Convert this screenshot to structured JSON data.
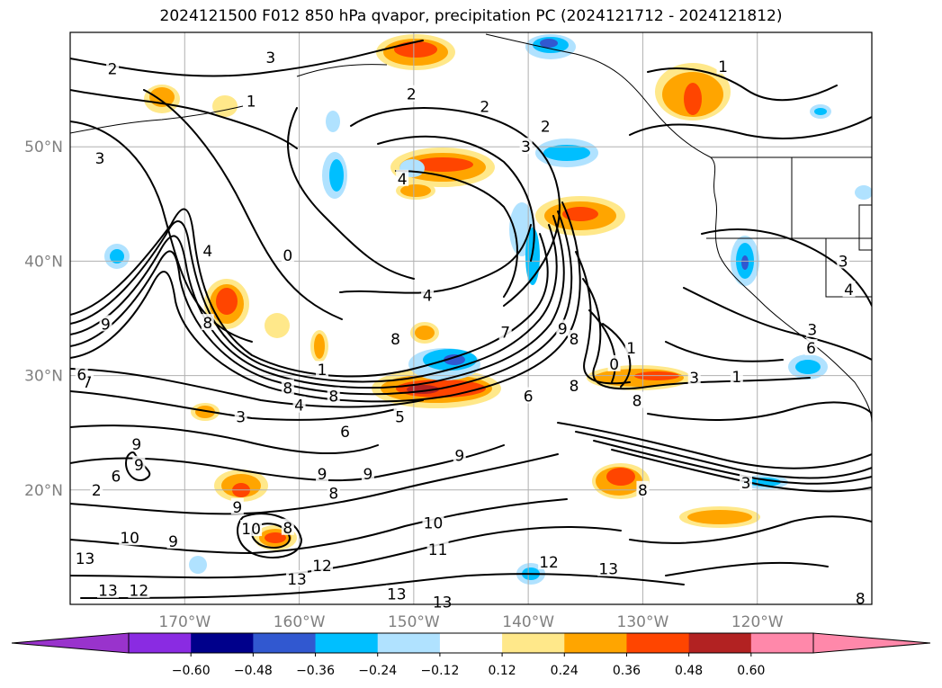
{
  "title": "2024121500 F012 850 hPa qvapor, precipitation PC (2024121712 - 2024121812)",
  "map": {
    "lon_range": [
      -180,
      -110
    ],
    "lat_range": [
      10,
      60
    ],
    "lat_ticks": [
      {
        "value": 50,
        "label": "50°N"
      },
      {
        "value": 40,
        "label": "40°N"
      },
      {
        "value": 30,
        "label": "30°N"
      },
      {
        "value": 20,
        "label": "20°N"
      }
    ],
    "lon_ticks": [
      {
        "value": -170,
        "label": "170°W"
      },
      {
        "value": -160,
        "label": "160°W"
      },
      {
        "value": -150,
        "label": "150°W"
      },
      {
        "value": -140,
        "label": "140°W"
      },
      {
        "value": -130,
        "label": "130°W"
      },
      {
        "value": -120,
        "label": "120°W"
      }
    ],
    "gridlines": true
  },
  "colorbar": {
    "orientation": "horizontal",
    "extend": "both",
    "colors": [
      "#9933cc",
      "#8a2be2",
      "#00008b",
      "#3158d0",
      "#00bfff",
      "#b0e2ff",
      "#ffffff",
      "#ffe88a",
      "#ffa500",
      "#ff4500",
      "#b22222",
      "#ff88aa",
      "#ff88aa"
    ],
    "tick_labels": [
      "−0.60",
      "−0.48",
      "−0.36",
      "−0.24",
      "−0.12",
      "0.12",
      "0.24",
      "0.36",
      "0.48",
      "0.60"
    ]
  },
  "contour_labels": [
    {
      "text": "2",
      "lon": -176.3,
      "lat": 56.8
    },
    {
      "text": "3",
      "lon": -162.5,
      "lat": 57.8
    },
    {
      "text": "1",
      "lon": -164.2,
      "lat": 54.0
    },
    {
      "text": "2",
      "lon": -150.2,
      "lat": 54.6
    },
    {
      "text": "2",
      "lon": -143.8,
      "lat": 53.5
    },
    {
      "text": "2",
      "lon": -138.5,
      "lat": 51.8
    },
    {
      "text": "3",
      "lon": -140.2,
      "lat": 50.0
    },
    {
      "text": "1",
      "lon": -123.0,
      "lat": 57.0
    },
    {
      "text": "3",
      "lon": -177.4,
      "lat": 49.0
    },
    {
      "text": "4",
      "lon": -151.0,
      "lat": 47.2
    },
    {
      "text": "4",
      "lon": -168.0,
      "lat": 40.9
    },
    {
      "text": "0",
      "lon": -161.0,
      "lat": 40.5
    },
    {
      "text": "4",
      "lon": -148.8,
      "lat": 37.0
    },
    {
      "text": "9",
      "lon": -176.9,
      "lat": 34.5
    },
    {
      "text": "8",
      "lon": -168.0,
      "lat": 34.6
    },
    {
      "text": "8",
      "lon": -151.6,
      "lat": 33.2
    },
    {
      "text": "7",
      "lon": -142.0,
      "lat": 33.8
    },
    {
      "text": "9",
      "lon": -137.0,
      "lat": 34.1
    },
    {
      "text": "8",
      "lon": -136.0,
      "lat": 33.2
    },
    {
      "text": "1",
      "lon": -131.0,
      "lat": 32.4
    },
    {
      "text": "0",
      "lon": -132.5,
      "lat": 31.0
    },
    {
      "text": "3",
      "lon": -115.2,
      "lat": 34.0
    },
    {
      "text": "6",
      "lon": -115.3,
      "lat": 32.4
    },
    {
      "text": "1",
      "lon": -158.0,
      "lat": 30.5
    },
    {
      "text": "8",
      "lon": -161.0,
      "lat": 28.9
    },
    {
      "text": "8",
      "lon": -157.0,
      "lat": 28.2
    },
    {
      "text": "4",
      "lon": -160.0,
      "lat": 27.4
    },
    {
      "text": "3",
      "lon": -165.1,
      "lat": 26.4
    },
    {
      "text": "5",
      "lon": -151.2,
      "lat": 26.4
    },
    {
      "text": "6",
      "lon": -156.0,
      "lat": 25.1
    },
    {
      "text": "6",
      "lon": -140.0,
      "lat": 28.2
    },
    {
      "text": "8",
      "lon": -136.0,
      "lat": 29.1
    },
    {
      "text": "8",
      "lon": -130.5,
      "lat": 27.8
    },
    {
      "text": "3",
      "lon": -125.5,
      "lat": 29.8
    },
    {
      "text": "1",
      "lon": -121.8,
      "lat": 29.9
    },
    {
      "text": "7",
      "lon": -178.5,
      "lat": 29.4
    },
    {
      "text": "6",
      "lon": -179.0,
      "lat": 30.1
    },
    {
      "text": "9",
      "lon": -174.2,
      "lat": 24.0
    },
    {
      "text": "9",
      "lon": -146.0,
      "lat": 23.0
    },
    {
      "text": "9",
      "lon": -174.0,
      "lat": 22.2
    },
    {
      "text": "6",
      "lon": -176.0,
      "lat": 21.2
    },
    {
      "text": "2",
      "lon": -177.7,
      "lat": 20.0
    },
    {
      "text": "9",
      "lon": -158.0,
      "lat": 21.4
    },
    {
      "text": "9",
      "lon": -154.0,
      "lat": 21.4
    },
    {
      "text": "8",
      "lon": -157.0,
      "lat": 19.7
    },
    {
      "text": "8",
      "lon": -130.0,
      "lat": 20.0
    },
    {
      "text": "3",
      "lon": -121.0,
      "lat": 20.6
    },
    {
      "text": "9",
      "lon": -165.4,
      "lat": 18.5
    },
    {
      "text": "10",
      "lon": -164.2,
      "lat": 16.6
    },
    {
      "text": "8",
      "lon": -161.0,
      "lat": 16.7
    },
    {
      "text": "9",
      "lon": -171.0,
      "lat": 15.5
    },
    {
      "text": "10",
      "lon": -174.8,
      "lat": 15.8
    },
    {
      "text": "10",
      "lon": -148.3,
      "lat": 17.1
    },
    {
      "text": "11",
      "lon": -147.9,
      "lat": 14.8
    },
    {
      "text": "12",
      "lon": -158.0,
      "lat": 13.4
    },
    {
      "text": "12",
      "lon": -138.2,
      "lat": 13.7
    },
    {
      "text": "13",
      "lon": -133.0,
      "lat": 13.1
    },
    {
      "text": "13",
      "lon": -178.7,
      "lat": 14.0
    },
    {
      "text": "13",
      "lon": -160.2,
      "lat": 12.2
    },
    {
      "text": "13",
      "lon": -176.7,
      "lat": 11.2
    },
    {
      "text": "12",
      "lon": -174.0,
      "lat": 11.2
    },
    {
      "text": "13",
      "lon": -151.5,
      "lat": 10.9
    },
    {
      "text": "13",
      "lon": -147.5,
      "lat": 10.2
    },
    {
      "text": "8",
      "lon": -111.0,
      "lat": 10.5
    },
    {
      "text": "4",
      "lon": -112.0,
      "lat": 37.5
    },
    {
      "text": "3",
      "lon": -112.5,
      "lat": 40.0
    }
  ]
}
